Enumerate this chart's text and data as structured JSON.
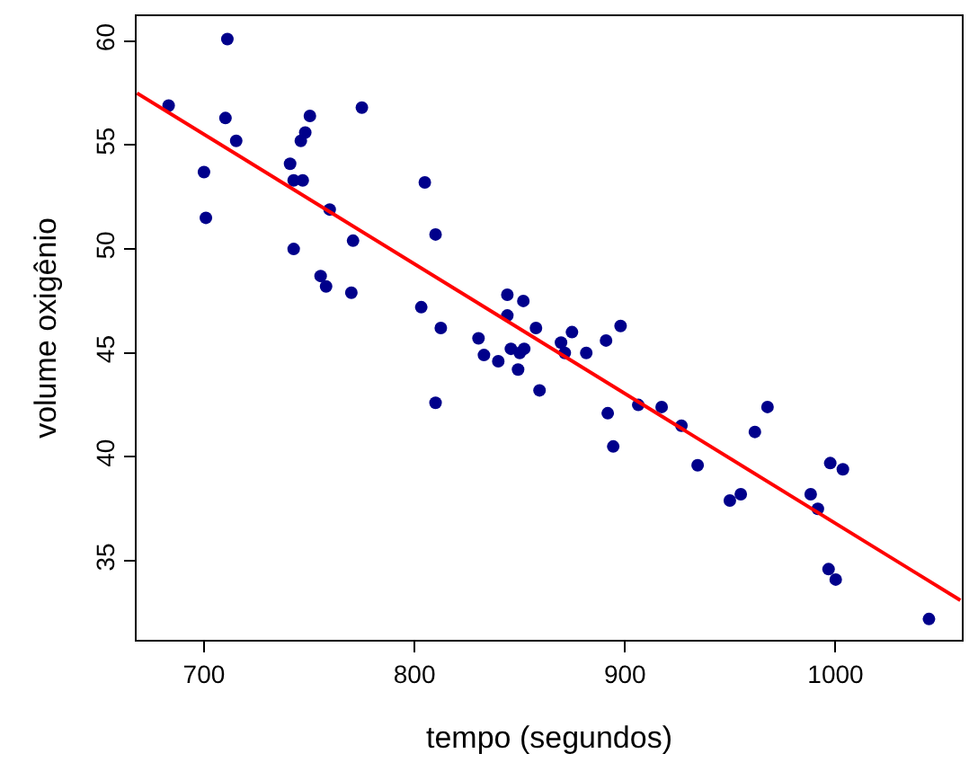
{
  "chart_data": {
    "type": "scatter",
    "xlabel": "tempo (segundos)",
    "ylabel": "volume oxigênio",
    "xlim": [
      668,
      1060
    ],
    "ylim": [
      31.2,
      61.2
    ],
    "xticks": [
      700,
      800,
      900,
      1000
    ],
    "yticks": [
      35,
      40,
      45,
      50,
      55,
      60
    ],
    "grid": false,
    "marker": "circle",
    "series": [
      {
        "color": "#00008b",
        "x": [
          683.2,
          711.1,
          710.2,
          715.3,
          700,
          700.9,
          740.9,
          742.6,
          746.9,
          746,
          748.1,
          750.3,
          775,
          759.7,
          742.6,
          755.4,
          758,
          770.8,
          770,
          804.9,
          810,
          803.2,
          812.5,
          810,
          844.1,
          851.7,
          844.1,
          857.7,
          830.4,
          833,
          839.8,
          845.8,
          850,
          852.1,
          849.2,
          859.4,
          874.8,
          869.6,
          871.4,
          881.6,
          891,
          897.9,
          891.8,
          894.4,
          906.3,
          917.4,
          926.8,
          934.5,
          949.8,
          955,
          961.7,
          967.7,
          988.2,
          991.6,
          997.5,
          1003.5,
          996.7,
          1000.1,
          1044.4
        ],
        "values": [
          56.9,
          60.1,
          56.3,
          55.2,
          53.7,
          51.5,
          54.1,
          53.3,
          53.3,
          55.2,
          55.6,
          56.4,
          56.8,
          51.9,
          50.0,
          48.7,
          48.2,
          50.4,
          47.9,
          53.2,
          50.7,
          47.2,
          46.2,
          42.6,
          47.8,
          47.5,
          46.8,
          46.2,
          45.7,
          44.9,
          44.6,
          45.2,
          45.0,
          45.2,
          44.2,
          43.2,
          46.0,
          45.5,
          45.0,
          45.0,
          45.6,
          46.3,
          42.1,
          40.5,
          42.5,
          42.4,
          41.5,
          39.6,
          37.9,
          38.2,
          41.2,
          42.4,
          38.2,
          37.5,
          39.7,
          39.4,
          34.6,
          34.1,
          32.2
        ]
      },
      {
        "type": "line",
        "color": "#ff0000",
        "marker": "none",
        "line_style": "solid",
        "x": [
          668.2,
          1059.3
        ],
        "values": [
          57.5,
          33.1
        ]
      }
    ]
  }
}
